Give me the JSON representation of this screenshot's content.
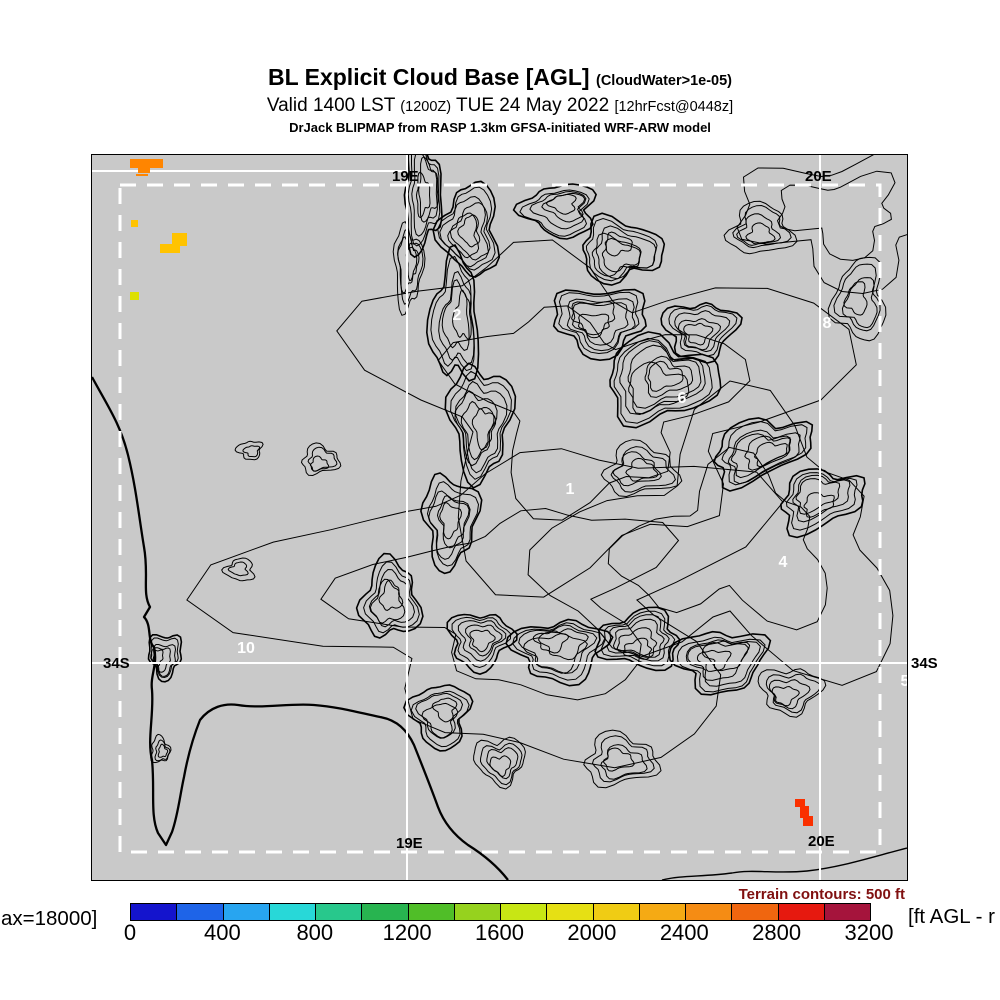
{
  "header": {
    "title": "BL Explicit Cloud Base [AGL]",
    "title_note": "(CloudWater>1e-05)",
    "valid_time": "Valid 1400 LST",
    "valid_zulu": "(1200Z)",
    "valid_date": "TUE 24 May 2022",
    "forecast_note": "[12hrFcst@0448z]",
    "model_line": "DrJack BLIPMAP from RASP 1.3km GFSA-initiated WRF-ARW model"
  },
  "map": {
    "lon_label_19e": "19E",
    "lon_label_20e": "20E",
    "lat_label_34s": "34S"
  },
  "footer": {
    "terrain_note": "Terrain contours: 500 ft",
    "left_cropped_text": "ax=18000]",
    "right_cropped_text": "[ft AGL - r"
  },
  "chart_data": {
    "type": "heatmap",
    "title": "BL Explicit Cloud Base [AGL] (CloudWater>1e-05)",
    "valid": "1400 LST (1200Z) TUE 24 May 2022",
    "forecast_init": "12hrFcst@0448z",
    "model": "DrJack BLIPMAP from RASP 1.3km GFSA-initiated WRF-ARW model",
    "units": "ft AGL",
    "terrain_contour_interval": "500 ft",
    "grid_lines": {
      "longitudes": [
        "19E",
        "20E"
      ],
      "latitudes": [
        "34S"
      ]
    },
    "colorbar": {
      "ticks": [
        "0",
        "400",
        "800",
        "1200",
        "1600",
        "2000",
        "2400",
        "2800",
        "3200"
      ],
      "segment_step_ft": 200,
      "colors": [
        "#1414CD",
        "#1E64E8",
        "#28A5F0",
        "#28D8D8",
        "#28C88C",
        "#28B450",
        "#50BE28",
        "#96D21E",
        "#C8E614",
        "#E6E014",
        "#F0CC14",
        "#F5AA14",
        "#F58C14",
        "#F0660F",
        "#E6190F",
        "#A5143C"
      ]
    },
    "annotations": [
      {
        "label": "2",
        "xf": 0.448,
        "yf": 0.222
      },
      {
        "label": "8",
        "xf": 0.902,
        "yf": 0.233
      },
      {
        "label": "6",
        "xf": 0.724,
        "yf": 0.337
      },
      {
        "label": "1",
        "xf": 0.587,
        "yf": 0.462
      },
      {
        "label": "4",
        "xf": 0.848,
        "yf": 0.563
      },
      {
        "label": "10",
        "xf": 0.189,
        "yf": 0.681
      },
      {
        "label": "5",
        "xf": 0.998,
        "yf": 0.727
      }
    ],
    "cloud_patches": [
      {
        "approx_value_ft": 2500,
        "color": "#FF8500",
        "rects": [
          [
            38,
            4,
            33,
            9
          ],
          [
            46,
            13,
            12,
            5
          ],
          [
            44,
            19,
            12,
            2
          ]
        ]
      },
      {
        "approx_value_ft": 2200,
        "color": "#FFC300",
        "rects": [
          [
            39,
            65,
            7,
            7
          ]
        ]
      },
      {
        "approx_value_ft": 2200,
        "color": "#FFC300",
        "rects": [
          [
            80,
            78,
            15,
            13
          ],
          [
            68,
            89,
            20,
            9
          ]
        ]
      },
      {
        "approx_value_ft": 1900,
        "color": "#DDE000",
        "rects": [
          [
            38,
            137,
            9,
            8
          ]
        ]
      },
      {
        "approx_value_ft": 2900,
        "color": "#FA3000",
        "rects": [
          [
            703,
            644,
            10,
            8
          ],
          [
            708,
            651,
            9,
            12
          ],
          [
            711,
            661,
            10,
            10
          ]
        ]
      }
    ]
  }
}
